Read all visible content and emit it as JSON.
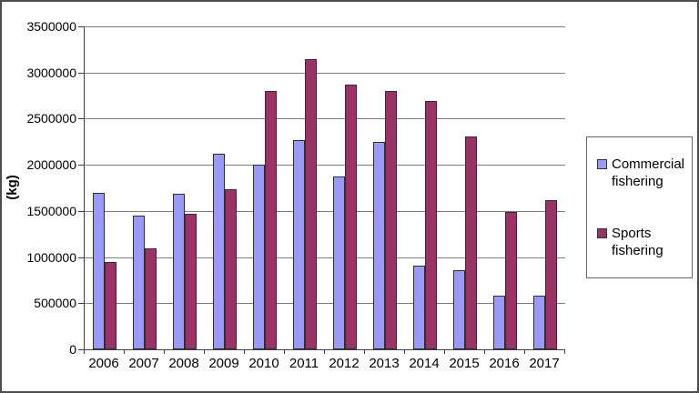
{
  "chart_data": {
    "type": "bar",
    "title": "",
    "xlabel": "",
    "ylabel": "(kg)",
    "categories": [
      "2006",
      "2007",
      "2008",
      "2009",
      "2010",
      "2011",
      "2012",
      "2013",
      "2014",
      "2015",
      "2016",
      "2017"
    ],
    "series": [
      {
        "name": "Commercial fishering",
        "key": "commercial",
        "color": "#9999FF",
        "values": [
          1700000,
          1450000,
          1690000,
          2120000,
          2000000,
          2270000,
          1870000,
          2250000,
          910000,
          860000,
          580000,
          580000
        ]
      },
      {
        "name": "Sports fishering",
        "key": "sports",
        "color": "#993366",
        "values": [
          950000,
          1090000,
          1470000,
          1740000,
          2800000,
          3150000,
          2870000,
          2800000,
          2690000,
          2310000,
          1490000,
          1620000
        ]
      }
    ],
    "ylim": [
      0,
      3500000
    ],
    "y_ticks": [
      0,
      500000,
      1000000,
      1500000,
      2000000,
      2500000,
      3000000,
      3500000
    ],
    "y_tick_labels": [
      "0",
      "500000",
      "1000000",
      "1500000",
      "2000000",
      "2500000",
      "3000000",
      "3500000"
    ],
    "grid": true,
    "legend_position": "right",
    "colors": {
      "gridline": "#808080",
      "axis": "#404040",
      "bar_border": "#2e2e2e",
      "chart_border": "#4d4d4d",
      "legend_border": "#666666",
      "background": "#FFFFFF",
      "text": "#000000"
    }
  }
}
